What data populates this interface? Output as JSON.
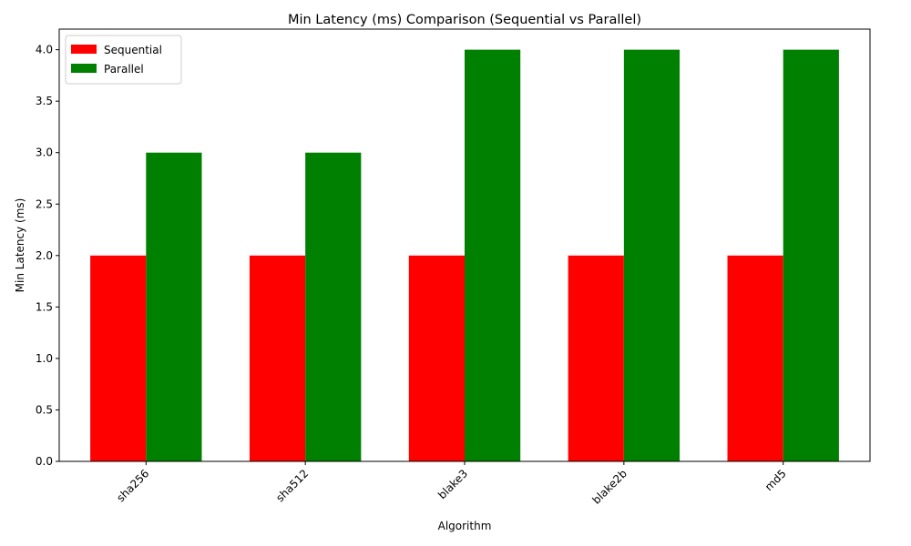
{
  "chart_data": {
    "type": "bar",
    "title": "Min Latency (ms) Comparison (Sequential vs Parallel)",
    "xlabel": "Algorithm",
    "ylabel": "Min Latency (ms)",
    "categories": [
      "sha256",
      "sha512",
      "blake3",
      "blake2b",
      "md5"
    ],
    "series": [
      {
        "name": "Sequential",
        "color": "#ff0000",
        "values": [
          2,
          2,
          2,
          2,
          2
        ]
      },
      {
        "name": "Parallel",
        "color": "#008000",
        "values": [
          3,
          3,
          4,
          4,
          4
        ]
      }
    ],
    "ylim": [
      0,
      4.2
    ],
    "yticks": [
      "0.0",
      "0.5",
      "1.0",
      "1.5",
      "2.0",
      "2.5",
      "3.0",
      "3.5",
      "4.0"
    ],
    "grid": false,
    "legend_position": "top-left",
    "xtick_rotation_deg": 45
  }
}
